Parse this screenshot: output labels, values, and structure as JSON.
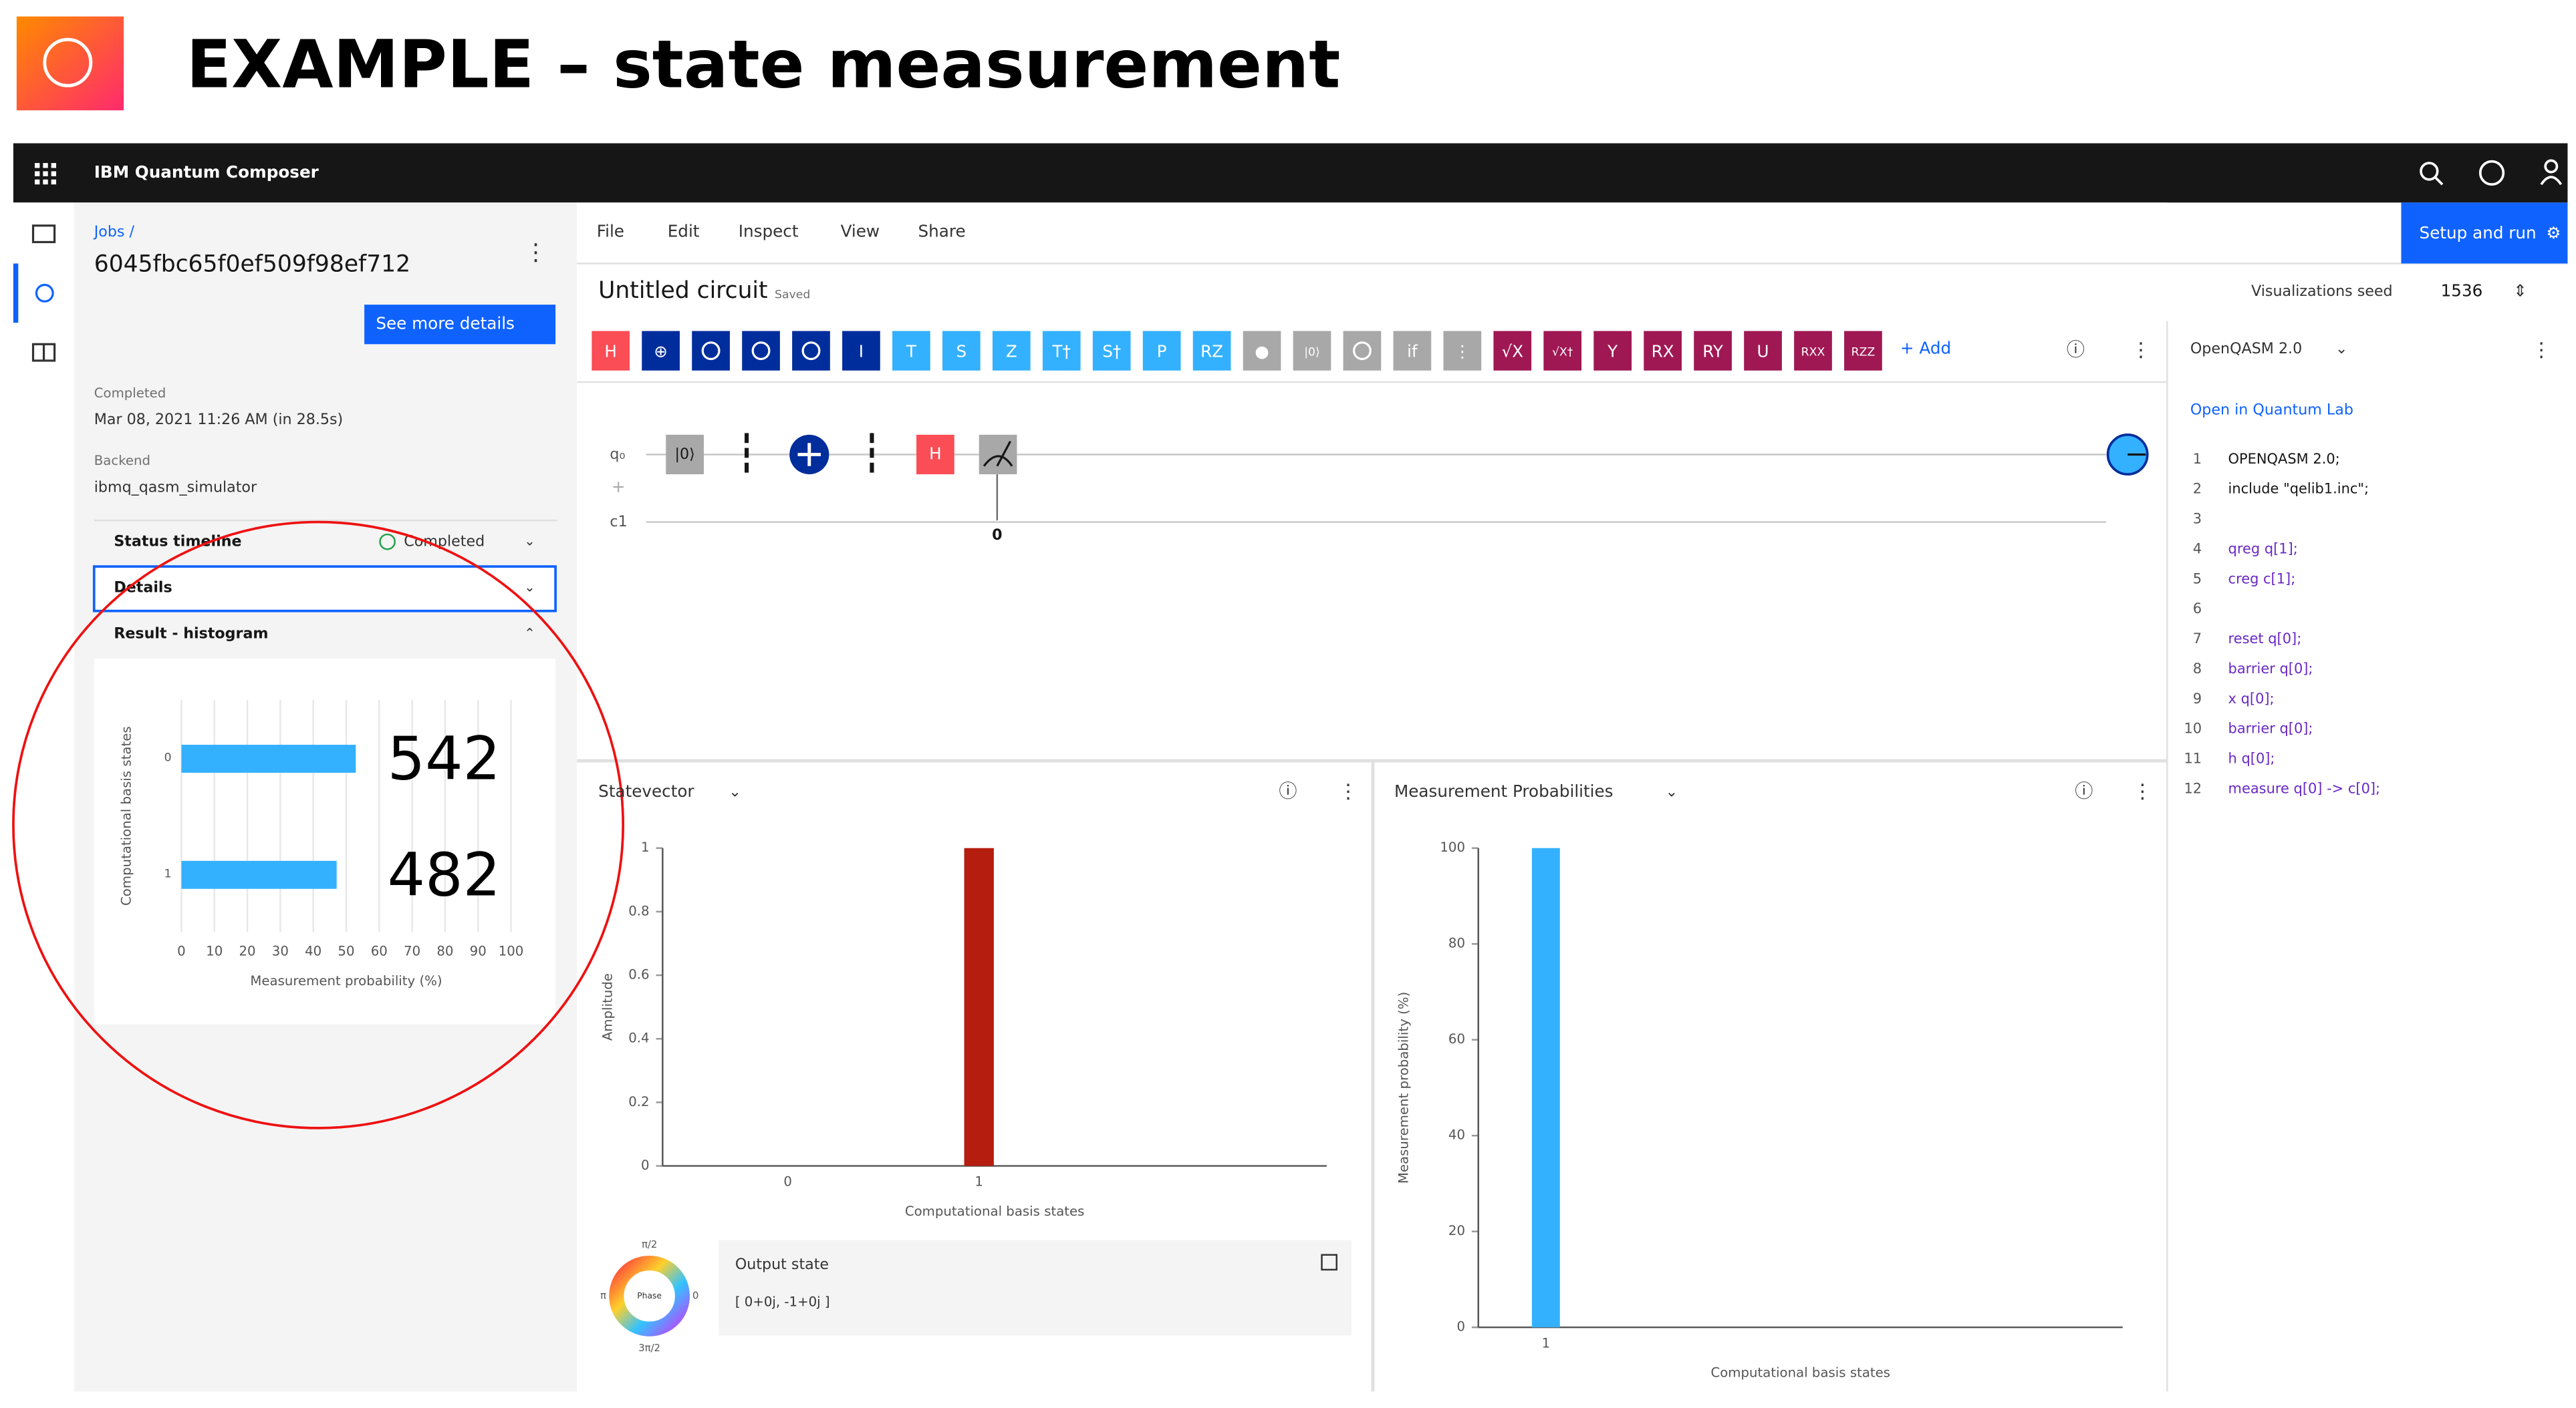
{
  "slide_title": "EXAMPLE – state measurement",
  "app": {
    "name": "IBM Quantum Composer"
  },
  "job": {
    "breadcrumb": "Jobs /",
    "id": "6045fbc65f0ef509f98ef712",
    "details_button": "See more details",
    "completed_label": "Completed",
    "completed_value": "Mar 08, 2021 11:26 AM (in 28.5s)",
    "backend_label": "Backend",
    "backend_value": "ibmq_qasm_simulator",
    "status_label": "Status timeline",
    "status_value": "Completed",
    "details_label": "Details",
    "result_label": "Result - histogram"
  },
  "histogram": {
    "type": "hbar",
    "categories": [
      "0",
      "1"
    ],
    "values": [
      52.9,
      47.1
    ],
    "color": "#33b1ff",
    "annotations": [
      "542",
      "482"
    ],
    "xlim": [
      0,
      100
    ],
    "xticks": [
      0,
      10,
      20,
      30,
      40,
      50,
      60,
      70,
      80,
      90,
      100
    ],
    "xlabel": "Measurement probability (%)",
    "ylabel": "Computational basis states",
    "grid": true
  },
  "menu": [
    "File",
    "Edit",
    "Inspect",
    "View",
    "Share"
  ],
  "setup_button": "Setup and run",
  "circuit": {
    "title": "Untitled circuit",
    "status": "Saved",
    "seed_label": "Visualizations seed",
    "seed_value": 1536,
    "qubit": "q₀",
    "creg": "c1",
    "reset_gate": "|0⟩",
    "h_gate": "H",
    "measure_bit": "0"
  },
  "palette": {
    "gates": [
      {
        "label": "H",
        "color": "#fa4d56"
      },
      {
        "label": "⊕",
        "color": "#002d9c"
      },
      {
        "color": "#002d9c"
      },
      {
        "color": "#002d9c"
      },
      {
        "color": "#002d9c"
      },
      {
        "label": "I",
        "color": "#002d9c"
      },
      {
        "label": "T",
        "color": "#33b1ff"
      },
      {
        "label": "S",
        "color": "#33b1ff"
      },
      {
        "label": "Z",
        "color": "#33b1ff"
      },
      {
        "label": "T†",
        "color": "#33b1ff"
      },
      {
        "label": "S†",
        "color": "#33b1ff"
      },
      {
        "label": "P",
        "color": "#33b1ff"
      },
      {
        "label": "RZ",
        "color": "#33b1ff"
      },
      {
        "label": "●",
        "color": "#a8a8a8"
      },
      {
        "label": "|0⟩",
        "color": "#a8a8a8"
      },
      {
        "color": "#a8a8a8"
      },
      {
        "label": "if",
        "color": "#a8a8a8"
      },
      {
        "label": "⋮",
        "color": "#a8a8a8"
      },
      {
        "label": "√X",
        "color": "#9f1853"
      },
      {
        "label": "√X†",
        "color": "#9f1853"
      },
      {
        "label": "Y",
        "color": "#9f1853"
      },
      {
        "label": "RX",
        "color": "#9f1853"
      },
      {
        "label": "RY",
        "color": "#9f1853"
      },
      {
        "label": "U",
        "color": "#9f1853"
      },
      {
        "label": "RXX",
        "color": "#9f1853"
      },
      {
        "label": "RZZ",
        "color": "#9f1853"
      }
    ],
    "add_label": "+ Add"
  },
  "statevector": {
    "type": "bar",
    "title": "Statevector",
    "categories": [
      "0",
      "1"
    ],
    "values": [
      0,
      1
    ],
    "color": "#b51d0e",
    "ylim": [
      0,
      1
    ],
    "yticks": [
      0,
      0.2,
      0.4,
      0.6,
      0.8,
      1
    ],
    "ylabel": "Amplitude",
    "xlabel": "Computational basis states"
  },
  "output_state": {
    "title": "Output state",
    "value": "[ 0+0j, -1+0j ]",
    "wheel_center": "Phase",
    "wheel_top": "π/2",
    "wheel_left": "π",
    "wheel_right": "0",
    "wheel_bottom": "3π/2"
  },
  "probabilities": {
    "type": "bar",
    "title": "Measurement Probabilities",
    "categories": [
      "1"
    ],
    "values": [
      100
    ],
    "color": "#33b1ff",
    "ylim": [
      0,
      100
    ],
    "yticks": [
      0,
      20,
      40,
      60,
      80,
      100
    ],
    "ylabel": "Measurement probability (%)",
    "xlabel": "Computational basis states"
  },
  "qasm": {
    "title": "OpenQASM 2.0",
    "link": "Open in Quantum Lab",
    "lines": [
      {
        "n": 1,
        "code": "OPENQASM 2.0;"
      },
      {
        "n": 2,
        "code": "include \"qelib1.inc\";"
      },
      {
        "n": 3
      },
      {
        "n": 4,
        "code": "qreg q[1];"
      },
      {
        "n": 5,
        "code": "creg c[1];"
      },
      {
        "n": 6
      },
      {
        "n": 7,
        "code": "reset q[0];"
      },
      {
        "n": 8,
        "code": "barrier q[0];"
      },
      {
        "n": 9,
        "code": "x q[0];"
      },
      {
        "n": 10,
        "code": "barrier q[0];"
      },
      {
        "n": 11,
        "code": "h q[0];"
      },
      {
        "n": 12,
        "code": "measure q[0] -> c[0];"
      }
    ]
  }
}
